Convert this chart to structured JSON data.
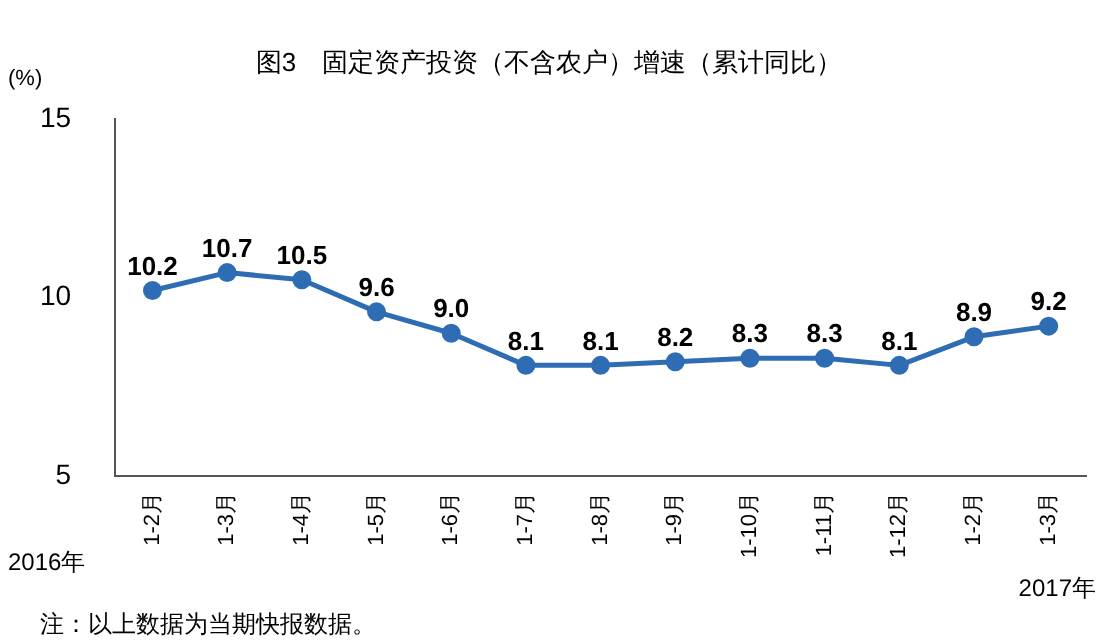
{
  "chart_data": {
    "type": "line",
    "title": "图3　固定资产投资（不含农户）增速（累计同比）",
    "ylabel": "(%)",
    "categories": [
      "1-2月",
      "1-3月",
      "1-4月",
      "1-5月",
      "1-6月",
      "1-7月",
      "1-8月",
      "1-9月",
      "1-10月",
      "1-11月",
      "1-12月",
      "1-2月",
      "1-3月"
    ],
    "series": [
      {
        "color": "#2e6db4",
        "values": [
          10.2,
          10.7,
          10.5,
          9.6,
          9.0,
          8.1,
          8.1,
          8.2,
          8.3,
          8.3,
          8.1,
          8.9,
          9.2
        ],
        "value_labels": [
          "10.2",
          "10.7",
          "10.5",
          "9.6",
          "9.0",
          "8.1",
          "8.1",
          "8.2",
          "8.3",
          "8.3",
          "8.1",
          "8.9",
          "9.2"
        ]
      }
    ],
    "ylim": [
      5,
      15
    ],
    "yticks": [
      5,
      10,
      15
    ],
    "grid": false,
    "legend": false,
    "marker": "circle",
    "line_style": "solid",
    "annotations": [
      "2016年",
      "2017年",
      "注：以上数据为当期快报数据。"
    ]
  }
}
